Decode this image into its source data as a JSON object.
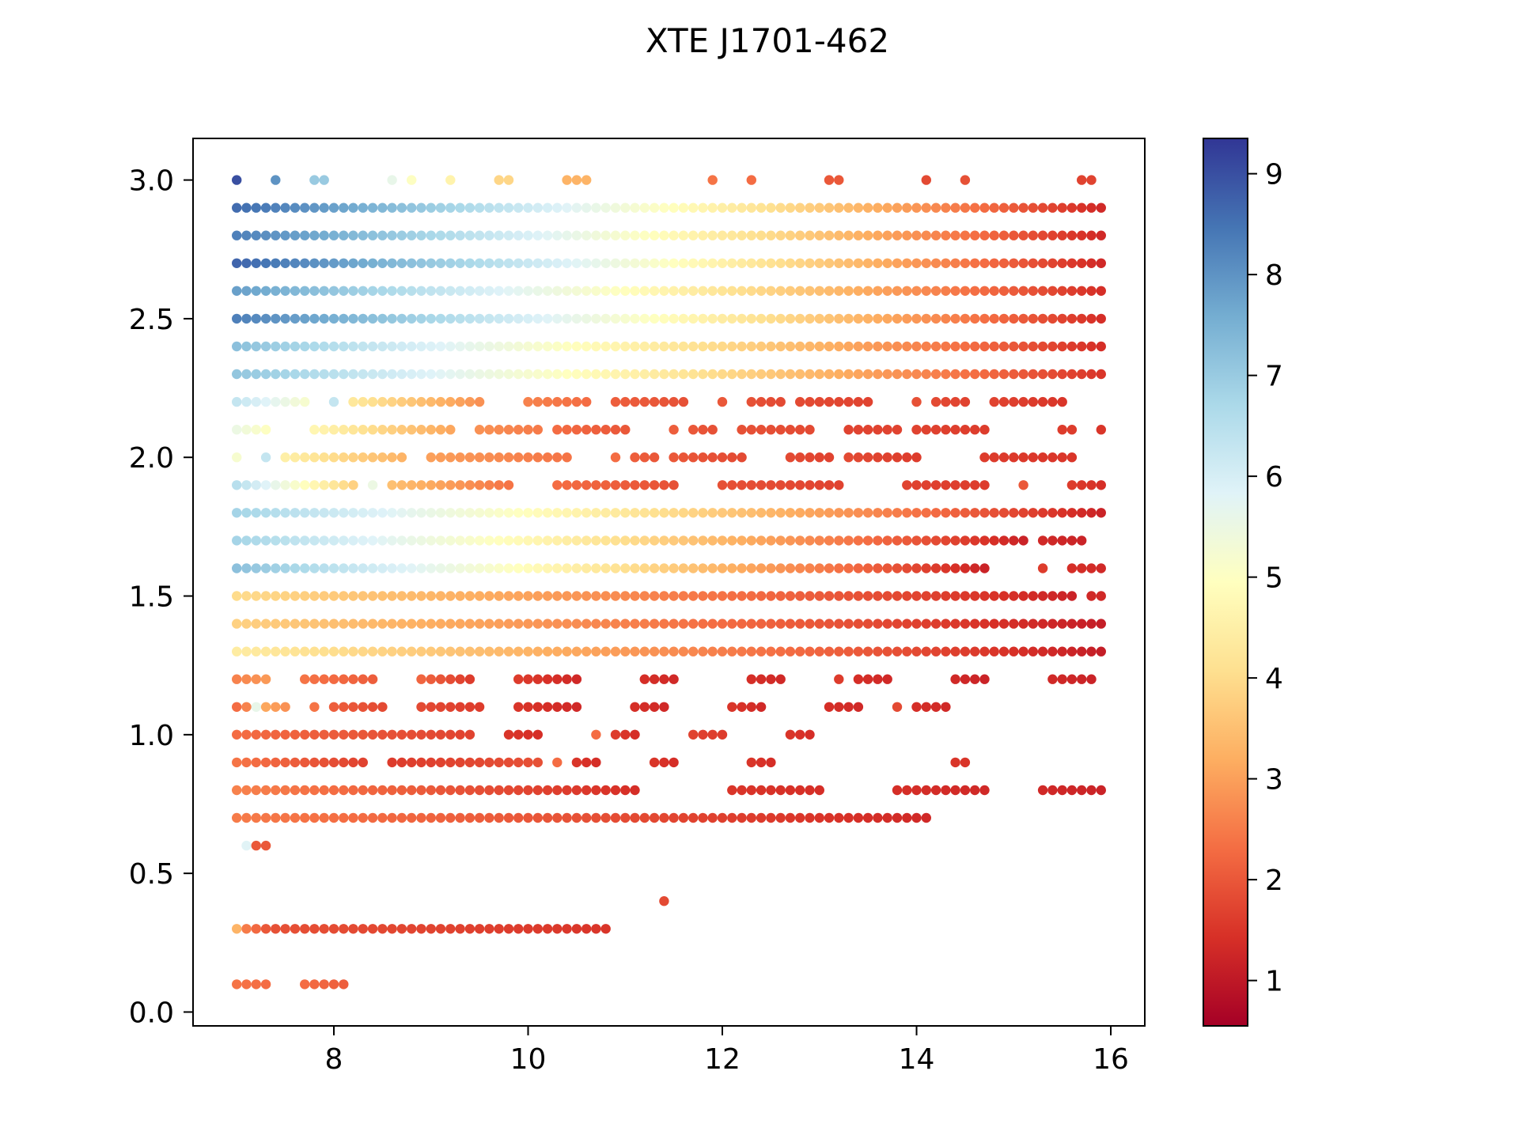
{
  "chart_data": {
    "type": "scatter",
    "title": "XTE J1701-462",
    "xlabel": "",
    "ylabel": "",
    "xlim": [
      6.55,
      16.35
    ],
    "ylim": [
      -0.05,
      3.15
    ],
    "x_ticks": [
      "8",
      "10",
      "12",
      "14",
      "16"
    ],
    "y_ticks": [
      "0.0",
      "0.5",
      "1.0",
      "1.5",
      "2.0",
      "2.5",
      "3.0"
    ],
    "colorbar": {
      "range": [
        0.55,
        9.35
      ],
      "ticks": [
        "1",
        "2",
        "3",
        "4",
        "5",
        "6",
        "7",
        "8",
        "9"
      ],
      "colormap": "RdYlBu",
      "stops": [
        "#a50026",
        "#d73027",
        "#f46d43",
        "#fdae61",
        "#fee090",
        "#ffffbf",
        "#e0f3f8",
        "#abd9e9",
        "#74add1",
        "#4575b4",
        "#313695"
      ]
    },
    "grid": false,
    "x_step": 0.1,
    "rows": [
      {
        "y": 3.0,
        "segments": [
          [
            7.0,
            7.0,
            9.0
          ],
          [
            7.4,
            7.4,
            8.0
          ],
          [
            7.8,
            7.9,
            7.0
          ],
          [
            8.6,
            8.6,
            5.6
          ],
          [
            8.8,
            8.8,
            5.0
          ],
          [
            9.2,
            9.2,
            4.6
          ],
          [
            9.7,
            9.8,
            3.9
          ],
          [
            10.4,
            10.6,
            3.3
          ],
          [
            11.9,
            11.9,
            2.4
          ],
          [
            12.3,
            12.3,
            2.3
          ],
          [
            13.1,
            13.2,
            2.0
          ],
          [
            14.1,
            14.1,
            1.8
          ],
          [
            14.5,
            14.5,
            1.9
          ],
          [
            15.7,
            15.8,
            1.7
          ]
        ]
      },
      {
        "y": 2.9,
        "segments": [
          [
            7.0,
            15.9,
            8.6,
            1.3
          ]
        ]
      },
      {
        "y": 2.8,
        "segments": [
          [
            7.0,
            15.9,
            8.3,
            1.3
          ]
        ]
      },
      {
        "y": 2.7,
        "segments": [
          [
            7.0,
            15.9,
            8.7,
            1.3
          ]
        ]
      },
      {
        "y": 2.6,
        "segments": [
          [
            7.0,
            15.9,
            7.8,
            1.4
          ]
        ]
      },
      {
        "y": 2.5,
        "segments": [
          [
            7.0,
            15.9,
            8.3,
            1.4
          ]
        ]
      },
      {
        "y": 2.4,
        "segments": [
          [
            7.0,
            15.9,
            7.2,
            1.4
          ]
        ]
      },
      {
        "y": 2.3,
        "segments": [
          [
            7.0,
            15.9,
            7.1,
            1.5
          ]
        ]
      },
      {
        "y": 2.2,
        "segments": [
          [
            7.0,
            7.7,
            6.3,
            5.2
          ],
          [
            8.0,
            8.0,
            6.3
          ],
          [
            8.2,
            9.5,
            4.3,
            2.8
          ],
          [
            10.0,
            10.6,
            2.6,
            2.3
          ],
          [
            10.9,
            11.6,
            2.1,
            1.9
          ],
          [
            12.0,
            12.0,
            2.0
          ],
          [
            12.3,
            12.6,
            1.9,
            1.8
          ],
          [
            12.8,
            13.5,
            1.8,
            1.7
          ],
          [
            14.0,
            14.0,
            1.9
          ],
          [
            14.2,
            14.5,
            1.8,
            1.7
          ],
          [
            14.8,
            15.5,
            1.7,
            1.5
          ]
        ]
      },
      {
        "y": 2.1,
        "segments": [
          [
            7.0,
            7.3,
            5.5,
            5.0
          ],
          [
            7.8,
            9.2,
            4.7,
            3.1
          ],
          [
            9.5,
            10.1,
            2.8,
            2.5
          ],
          [
            10.3,
            11.0,
            2.3,
            2.0
          ],
          [
            11.5,
            11.5,
            2.1
          ],
          [
            11.7,
            11.9,
            2.0,
            1.9
          ],
          [
            12.2,
            12.9,
            1.9,
            1.8
          ],
          [
            13.3,
            13.8,
            1.7,
            1.7
          ],
          [
            14.0,
            14.7,
            1.7,
            1.6
          ],
          [
            15.5,
            15.6,
            1.6
          ],
          [
            15.9,
            15.9,
            1.5
          ]
        ]
      },
      {
        "y": 2.0,
        "segments": [
          [
            7.0,
            7.0,
            5.2
          ],
          [
            7.3,
            7.3,
            6.3
          ],
          [
            7.5,
            8.7,
            4.5,
            3.3
          ],
          [
            9.0,
            10.4,
            3.0,
            2.4
          ],
          [
            10.9,
            10.9,
            2.3
          ],
          [
            11.1,
            11.3,
            2.1,
            2.0
          ],
          [
            11.5,
            12.2,
            2.0,
            1.8
          ],
          [
            12.7,
            13.1,
            1.8,
            1.7
          ],
          [
            13.3,
            14.0,
            1.8,
            1.6
          ],
          [
            14.7,
            15.6,
            1.6,
            1.5
          ]
        ]
      },
      {
        "y": 1.9,
        "segments": [
          [
            7.0,
            8.2,
            6.5,
            3.8
          ],
          [
            8.4,
            8.4,
            5.5
          ],
          [
            8.6,
            9.8,
            3.5,
            2.4
          ],
          [
            10.3,
            11.5,
            2.3,
            1.9
          ],
          [
            12.0,
            13.2,
            1.9,
            1.7
          ],
          [
            13.9,
            14.7,
            1.7,
            1.6
          ],
          [
            15.1,
            15.1,
            2.0
          ],
          [
            15.6,
            15.9,
            1.6,
            1.4
          ]
        ]
      },
      {
        "y": 1.8,
        "segments": [
          [
            7.0,
            15.9,
            6.8,
            1.2
          ]
        ]
      },
      {
        "y": 1.7,
        "segments": [
          [
            7.0,
            15.1,
            6.8,
            1.2
          ],
          [
            15.3,
            15.7,
            1.3,
            1.2
          ]
        ]
      },
      {
        "y": 1.6,
        "segments": [
          [
            7.0,
            14.7,
            7.2,
            1.2
          ],
          [
            15.3,
            15.3,
            1.6
          ],
          [
            15.6,
            15.9,
            1.4,
            1.3
          ]
        ]
      },
      {
        "y": 1.5,
        "segments": [
          [
            7.0,
            15.6,
            4.0,
            1.2
          ],
          [
            15.8,
            15.9,
            1.3
          ]
        ]
      },
      {
        "y": 1.4,
        "segments": [
          [
            7.0,
            15.9,
            3.8,
            1.1
          ]
        ]
      },
      {
        "y": 1.3,
        "segments": [
          [
            7.0,
            15.9,
            4.4,
            1.1
          ]
        ]
      },
      {
        "y": 1.2,
        "segments": [
          [
            7.0,
            7.3,
            2.6,
            2.9
          ],
          [
            7.7,
            8.4,
            2.4,
            2.1
          ],
          [
            8.9,
            9.4,
            2.2,
            1.6
          ],
          [
            9.9,
            10.5,
            1.6,
            1.3
          ],
          [
            11.2,
            11.5,
            1.4,
            1.3
          ],
          [
            12.3,
            12.6,
            1.4,
            1.3
          ],
          [
            13.2,
            13.2,
            1.6
          ],
          [
            13.4,
            13.7,
            1.4,
            1.3
          ],
          [
            14.4,
            14.7,
            1.3,
            1.2
          ],
          [
            15.4,
            15.8,
            1.3,
            1.2
          ]
        ]
      },
      {
        "y": 1.1,
        "segments": [
          [
            7.0,
            7.0,
            2.3
          ],
          [
            7.2,
            7.2,
            5.6
          ],
          [
            7.1,
            7.1,
            2.6
          ],
          [
            7.3,
            7.5,
            3.1,
            2.8
          ],
          [
            7.8,
            7.8,
            2.4
          ],
          [
            8.0,
            8.5,
            2.1,
            1.8
          ],
          [
            8.9,
            9.5,
            1.8,
            1.6
          ],
          [
            9.9,
            10.5,
            1.5,
            1.3
          ],
          [
            11.1,
            11.4,
            1.4,
            1.3
          ],
          [
            12.1,
            12.4,
            1.5,
            1.3
          ],
          [
            13.1,
            13.4,
            1.4,
            1.3
          ],
          [
            13.8,
            13.8,
            1.8
          ],
          [
            14.0,
            14.3,
            1.4,
            1.3
          ]
        ]
      },
      {
        "y": 1.0,
        "segments": [
          [
            7.0,
            9.4,
            2.3,
            1.7
          ],
          [
            9.8,
            10.1,
            1.5,
            1.4
          ],
          [
            10.7,
            10.7,
            2.3
          ],
          [
            10.9,
            11.1,
            1.6,
            1.4
          ],
          [
            11.7,
            12.0,
            1.7,
            1.6
          ],
          [
            12.7,
            12.9,
            1.5,
            1.4
          ]
        ]
      },
      {
        "y": 0.9,
        "segments": [
          [
            7.0,
            8.3,
            2.4,
            1.7
          ],
          [
            8.6,
            10.1,
            1.6,
            1.9
          ],
          [
            10.3,
            10.3,
            2.3
          ],
          [
            10.5,
            10.7,
            1.5,
            1.4
          ],
          [
            11.3,
            11.5,
            1.5,
            1.4
          ],
          [
            12.3,
            12.5,
            1.5,
            1.4
          ],
          [
            14.4,
            14.5,
            1.5
          ]
        ]
      },
      {
        "y": 0.8,
        "segments": [
          [
            7.0,
            11.1,
            2.6,
            1.4
          ],
          [
            12.1,
            13.0,
            1.5,
            1.4
          ],
          [
            13.8,
            14.7,
            1.4,
            1.3
          ],
          [
            15.3,
            15.9,
            1.3,
            1.2
          ]
        ]
      },
      {
        "y": 0.7,
        "segments": [
          [
            7.0,
            14.1,
            2.5,
            1.3
          ]
        ]
      },
      {
        "y": 0.6,
        "segments": [
          [
            7.1,
            7.1,
            5.8
          ],
          [
            7.2,
            7.3,
            2.0
          ]
        ]
      },
      {
        "y": 0.4,
        "segments": [
          [
            11.4,
            11.4,
            1.8
          ]
        ]
      },
      {
        "y": 0.3,
        "segments": [
          [
            7.0,
            7.0,
            3.3
          ],
          [
            7.1,
            7.3,
            2.5,
            2.0
          ],
          [
            7.4,
            10.8,
            1.9,
            1.5
          ]
        ]
      },
      {
        "y": 0.1,
        "segments": [
          [
            7.0,
            7.3,
            2.4,
            2.3
          ],
          [
            7.7,
            8.1,
            2.3,
            2.1
          ]
        ]
      }
    ]
  }
}
